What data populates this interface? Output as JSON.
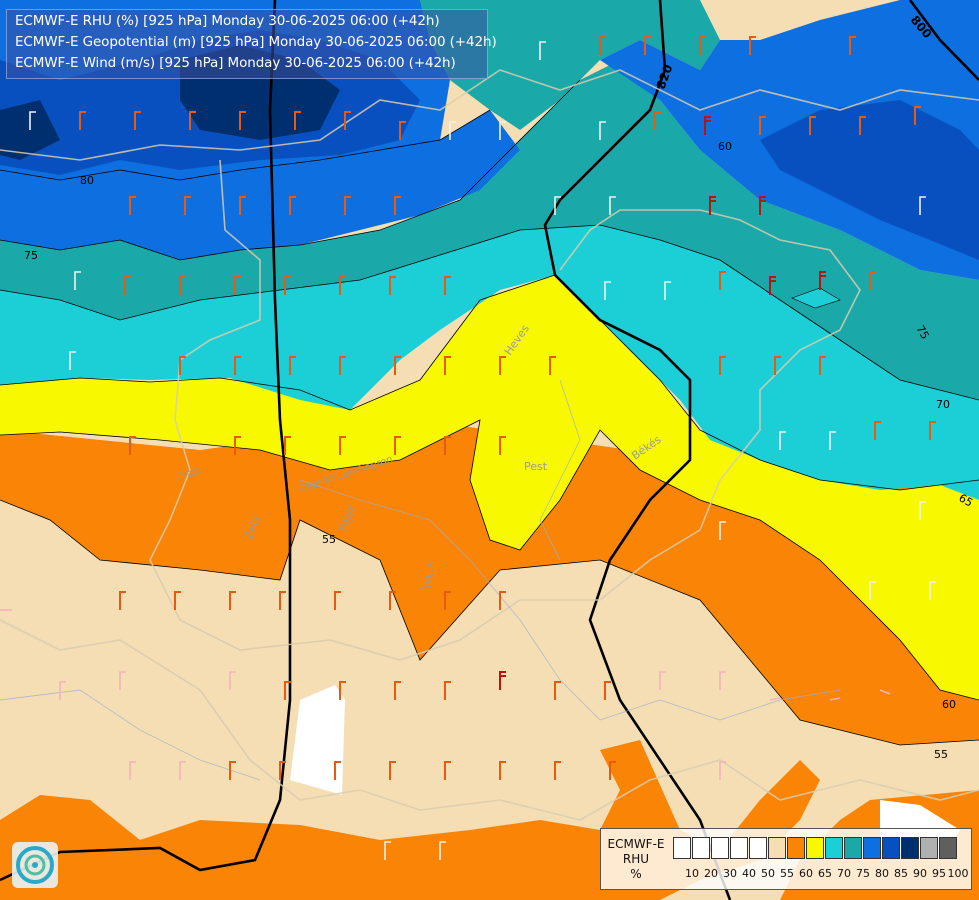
{
  "title": {
    "line1": "ECMWF-E RHU (%) [925 hPa] Monday 30-06-2025 06:00 (+42h)",
    "line2": "ECMWF-E Geopotential (m) [925 hPa] Monday 30-06-2025 06:00 (+42h)",
    "line3": "ECMWF-E Wind (m/s) [925 hPa] Monday 30-06-2025 06:00 (+42h)"
  },
  "contour_labels": {
    "rhu": [
      "80",
      "75",
      "60",
      "75",
      "70",
      "65",
      "60",
      "55",
      "55"
    ],
    "geopotential": [
      "820",
      "800"
    ]
  },
  "place_labels": [
    "Heves",
    "Pest",
    "Békés",
    "Vas",
    "Zala",
    "Győr-Moson-Sopron",
    "Fejér",
    "Tolna"
  ],
  "legend": {
    "name": "ECMWF-E",
    "variable": "RHU",
    "unit": "%",
    "ticks": [
      "10",
      "20",
      "30",
      "40",
      "50",
      "55",
      "60",
      "65",
      "70",
      "75",
      "80",
      "85",
      "90",
      "95",
      "100"
    ],
    "colors": [
      "#ffffff",
      "#ffffff",
      "#ffffff",
      "#ffffff",
      "#ffffff",
      "#f5deb3",
      "#fa8405",
      "#f8f800",
      "#1ccfd6",
      "#1aa8a8",
      "#0d6fe0",
      "#0850c0",
      "#002f70",
      "#b0b0b0",
      "#5f5f5f"
    ]
  }
}
